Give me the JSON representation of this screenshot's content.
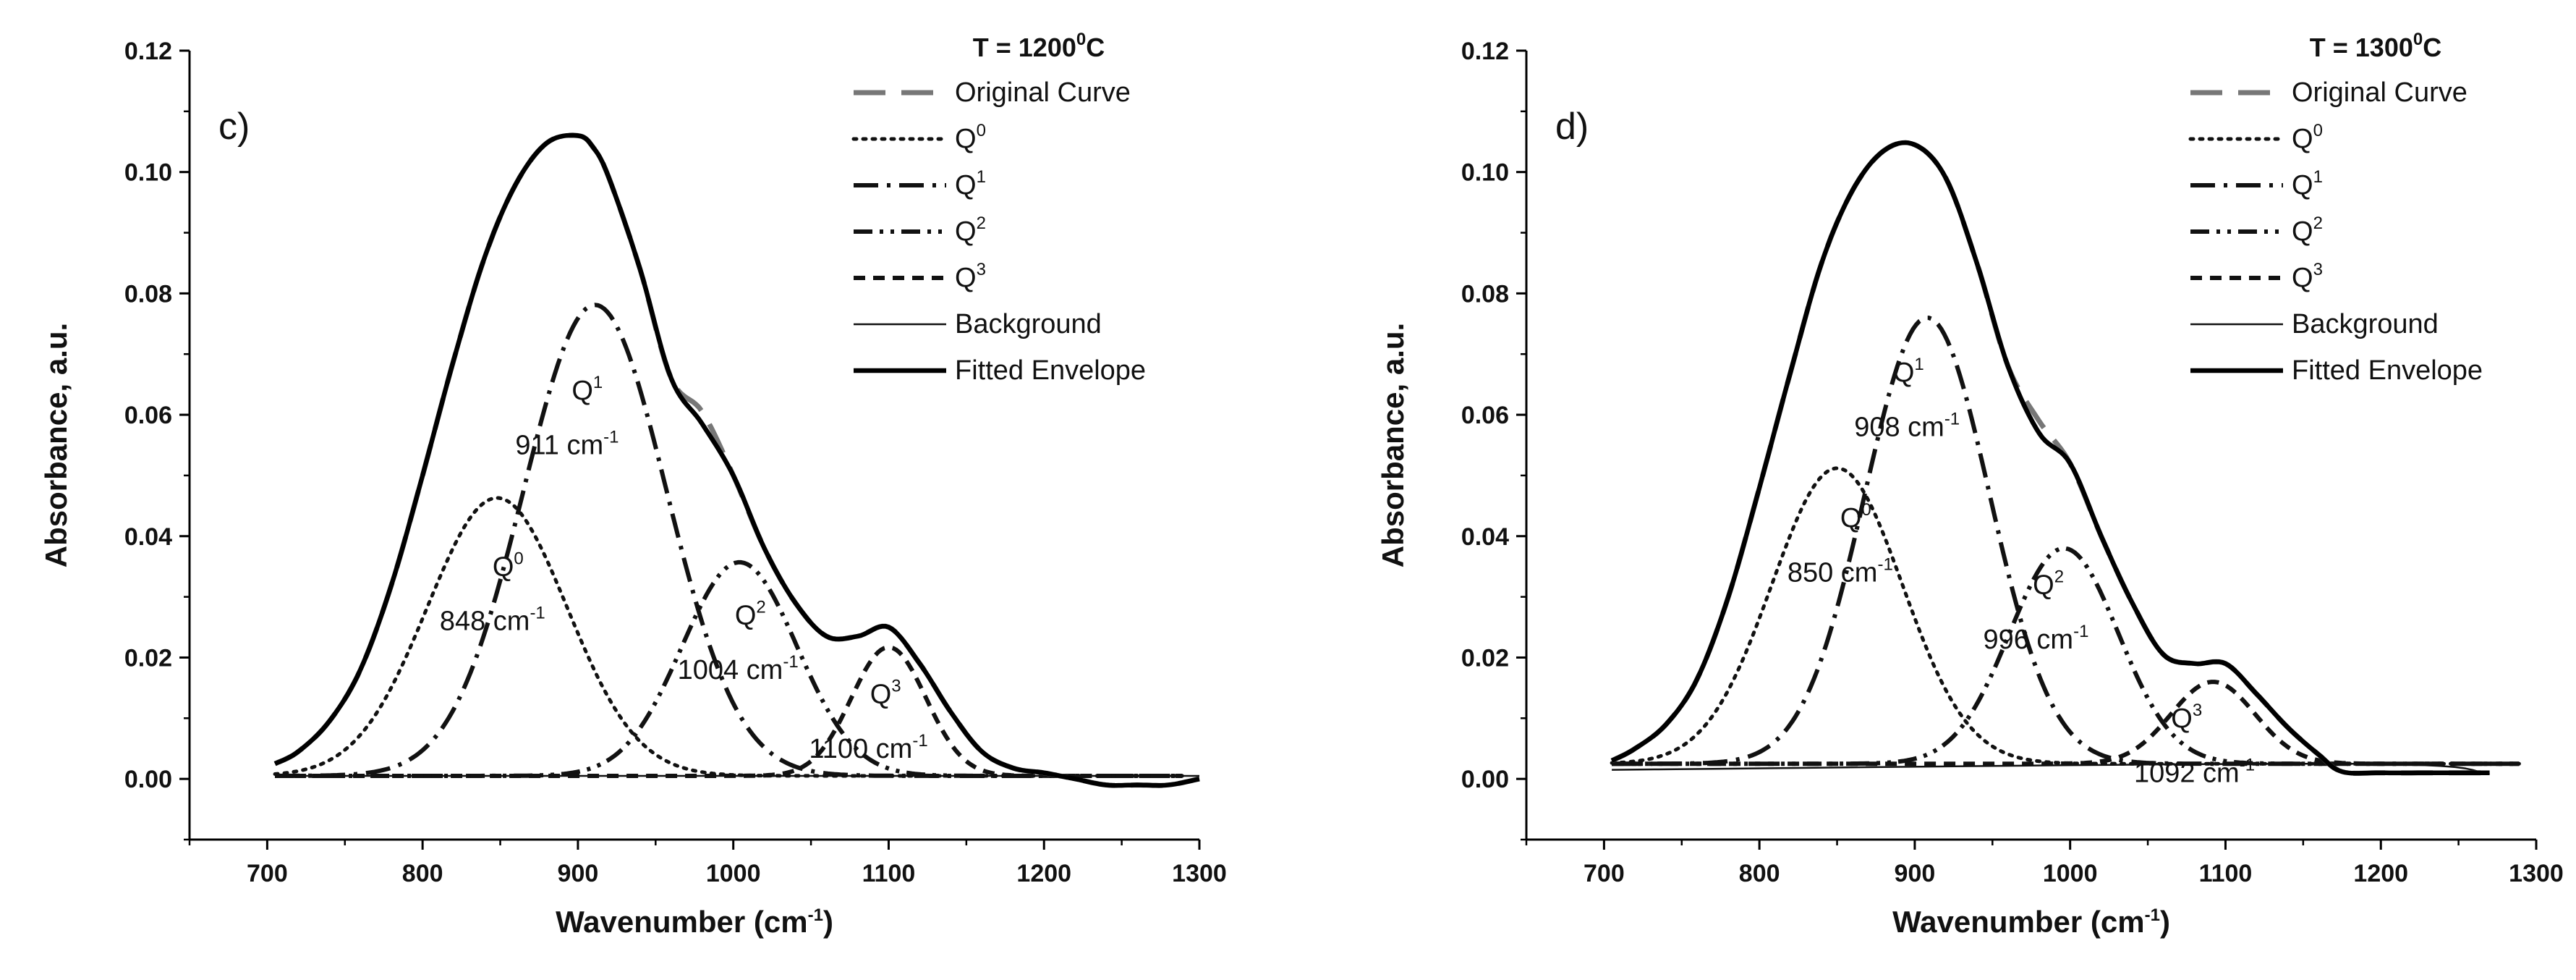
{
  "chart_data": [
    {
      "type": "line",
      "panel_label": "c)",
      "legend_title_prefix": "T = 1200",
      "legend_title_sup": "0",
      "legend_title_suffix": "C",
      "xlabel_main": "Wavenumber (cm",
      "xlabel_sup": "-1",
      "xlabel_close": ")",
      "ylabel": "Absorbance, a.u.",
      "xlim": [
        650,
        1300
      ],
      "ylim": [
        -0.01,
        0.12
      ],
      "xticks": [
        "700",
        "800",
        "900",
        "1000",
        "1100",
        "1200",
        "1300"
      ],
      "yticks": [
        "0.00",
        "0.02",
        "0.04",
        "0.06",
        "0.08",
        "0.10",
        "0.12"
      ],
      "legend_position": "top-right",
      "legend": [
        {
          "label": "Original Curve"
        },
        {
          "label": "Q",
          "sup": "0"
        },
        {
          "label": "Q",
          "sup": "1"
        },
        {
          "label": "Q",
          "sup": "2"
        },
        {
          "label": "Q",
          "sup": "3"
        },
        {
          "label": "Background"
        },
        {
          "label": "Fitted Envelope"
        }
      ],
      "series": [
        {
          "name": "Original Curve",
          "style": "long-dash",
          "color": "#777777",
          "x": [
            705,
            720,
            740,
            760,
            780,
            800,
            820,
            840,
            860,
            880,
            900,
            910,
            920,
            940,
            960,
            980,
            1000,
            1020,
            1040,
            1060,
            1080,
            1100,
            1120,
            1140,
            1160,
            1180,
            1200,
            1220,
            1240,
            1260,
            1280,
            1300
          ],
          "y": [
            0.0025,
            0.0045,
            0.0095,
            0.018,
            0.032,
            0.05,
            0.069,
            0.086,
            0.098,
            0.1048,
            0.106,
            0.104,
            0.099,
            0.084,
            0.066,
            0.0605,
            0.05,
            0.038,
            0.029,
            0.0235,
            0.0235,
            0.025,
            0.019,
            0.011,
            0.0045,
            0.0018,
            0.001,
            0.0,
            -0.001,
            -0.001,
            -0.001,
            0.0
          ]
        },
        {
          "name": "Q0",
          "style": "dotted",
          "center": 848,
          "amplitude": 0.0458,
          "sigma": 45,
          "baseline": 0.0005
        },
        {
          "name": "Q1",
          "style": "dash-dot",
          "center": 911,
          "amplitude": 0.0776,
          "sigma": 46,
          "baseline": 0.0005
        },
        {
          "name": "Q2",
          "style": "dash-dot-dot",
          "center": 1004,
          "amplitude": 0.0352,
          "sigma": 37,
          "baseline": 0.0005
        },
        {
          "name": "Q3",
          "style": "short-dash",
          "center": 1100,
          "amplitude": 0.0212,
          "sigma": 24,
          "baseline": 0.0005
        },
        {
          "name": "Background",
          "style": "thin",
          "x": [
            705,
            1300
          ],
          "y": [
            0.0005,
            0.0005
          ]
        },
        {
          "name": "Fitted Envelope",
          "style": "thick",
          "color": "#000000",
          "x": [
            705,
            720,
            740,
            760,
            780,
            800,
            820,
            840,
            860,
            880,
            900,
            910,
            920,
            940,
            960,
            980,
            1000,
            1020,
            1040,
            1060,
            1080,
            1100,
            1120,
            1140,
            1160,
            1180,
            1200,
            1220,
            1240,
            1260,
            1280,
            1300
          ],
          "y": [
            0.0025,
            0.0045,
            0.0095,
            0.018,
            0.032,
            0.05,
            0.069,
            0.086,
            0.098,
            0.1048,
            0.106,
            0.104,
            0.099,
            0.084,
            0.066,
            0.0585,
            0.05,
            0.038,
            0.029,
            0.0235,
            0.0235,
            0.025,
            0.019,
            0.011,
            0.0045,
            0.0018,
            0.001,
            0.0,
            -0.001,
            -0.001,
            -0.001,
            0.0
          ]
        }
      ],
      "annotations": [
        {
          "label": "Q",
          "sup": "1",
          "x": 906,
          "y": 0.0625
        },
        {
          "label": "911 cm",
          "sup": "-1",
          "x": 893,
          "y": 0.0535
        },
        {
          "label": "Q",
          "sup": "0",
          "x": 855,
          "y": 0.0335
        },
        {
          "label": "848 cm",
          "sup": "-1",
          "x": 845,
          "y": 0.0245
        },
        {
          "label": "Q",
          "sup": "2",
          "x": 1011,
          "y": 0.0255
        },
        {
          "label": "1004 cm",
          "sup": "-1",
          "x": 1003,
          "y": 0.0165
        },
        {
          "label": "Q",
          "sup": "3",
          "x": 1098,
          "y": 0.0125
        },
        {
          "label": "1100 cm",
          "sup": "-1",
          "x": 1087,
          "y": 0.0035
        }
      ]
    },
    {
      "type": "line",
      "panel_label": "d)",
      "legend_title_prefix": "T = 1300",
      "legend_title_sup": "0",
      "legend_title_suffix": "C",
      "xlabel_main": "Wavenumber (cm",
      "xlabel_sup": "-1",
      "xlabel_close": ")",
      "ylabel": "Absorbance, a.u.",
      "xlim": [
        650,
        1300
      ],
      "ylim": [
        -0.01,
        0.12
      ],
      "xticks": [
        "700",
        "800",
        "900",
        "1000",
        "1100",
        "1200",
        "1300"
      ],
      "yticks": [
        "0.00",
        "0.02",
        "0.04",
        "0.06",
        "0.08",
        "0.10",
        "0.12"
      ],
      "legend_position": "top-right",
      "legend": [
        {
          "label": "Original Curve"
        },
        {
          "label": "Q",
          "sup": "0"
        },
        {
          "label": "Q",
          "sup": "1"
        },
        {
          "label": "Q",
          "sup": "2"
        },
        {
          "label": "Q",
          "sup": "3"
        },
        {
          "label": "Background"
        },
        {
          "label": "Fitted Envelope"
        }
      ],
      "series": [
        {
          "name": "Original Curve",
          "style": "long-dash",
          "color": "#777777",
          "x": [
            705,
            720,
            740,
            760,
            780,
            800,
            820,
            840,
            860,
            880,
            900,
            920,
            940,
            960,
            980,
            1000,
            1020,
            1040,
            1060,
            1080,
            1100,
            1120,
            1140,
            1160,
            1175,
            1200,
            1240,
            1270
          ],
          "y": [
            0.003,
            0.005,
            0.009,
            0.0165,
            0.03,
            0.048,
            0.067,
            0.085,
            0.097,
            0.1035,
            0.1045,
            0.099,
            0.085,
            0.068,
            0.059,
            0.052,
            0.04,
            0.029,
            0.0205,
            0.019,
            0.019,
            0.014,
            0.0085,
            0.004,
            0.0012,
            0.001,
            0.001,
            0.001
          ]
        },
        {
          "name": "Q0",
          "style": "dotted",
          "center": 850,
          "amplitude": 0.0487,
          "sigma": 42,
          "baseline": 0.0025
        },
        {
          "name": "Q1",
          "style": "dash-dot",
          "center": 908,
          "amplitude": 0.0735,
          "sigma": 40,
          "baseline": 0.0025
        },
        {
          "name": "Q2",
          "style": "dash-dot-dot",
          "center": 996,
          "amplitude": 0.0355,
          "sigma": 35,
          "baseline": 0.0025
        },
        {
          "name": "Q3",
          "style": "short-dash",
          "center": 1092,
          "amplitude": 0.0135,
          "sigma": 27,
          "baseline": 0.0025
        },
        {
          "name": "Background",
          "style": "thin",
          "x": [
            705,
            1180,
            1270
          ],
          "y": [
            0.0015,
            0.0025,
            0.0008
          ]
        },
        {
          "name": "Fitted Envelope",
          "style": "thick",
          "color": "#000000",
          "x": [
            705,
            720,
            740,
            760,
            780,
            800,
            820,
            840,
            860,
            880,
            900,
            920,
            940,
            960,
            980,
            1000,
            1020,
            1040,
            1060,
            1080,
            1100,
            1120,
            1140,
            1160,
            1175,
            1200,
            1240,
            1270
          ],
          "y": [
            0.003,
            0.005,
            0.009,
            0.0165,
            0.03,
            0.048,
            0.067,
            0.085,
            0.097,
            0.1035,
            0.1045,
            0.099,
            0.085,
            0.068,
            0.057,
            0.052,
            0.04,
            0.029,
            0.0205,
            0.019,
            0.019,
            0.014,
            0.0085,
            0.004,
            0.0012,
            0.001,
            0.001,
            0.001
          ]
        }
      ],
      "annotations": [
        {
          "label": "Q",
          "sup": "1",
          "x": 896,
          "y": 0.0655
        },
        {
          "label": "908 cm",
          "sup": "-1",
          "x": 895,
          "y": 0.0565
        },
        {
          "label": "Q",
          "sup": "0",
          "x": 862,
          "y": 0.0415
        },
        {
          "label": "850 cm",
          "sup": "-1",
          "x": 852,
          "y": 0.0325
        },
        {
          "label": "Q",
          "sup": "2",
          "x": 986,
          "y": 0.0305
        },
        {
          "label": "996 cm",
          "sup": "-1",
          "x": 978,
          "y": 0.0215
        },
        {
          "label": "Q",
          "sup": "3",
          "x": 1075,
          "y": 0.0085
        },
        {
          "label": "1092 cm",
          "sup": "-1",
          "x": 1080,
          "y": -0.0005
        }
      ]
    }
  ]
}
